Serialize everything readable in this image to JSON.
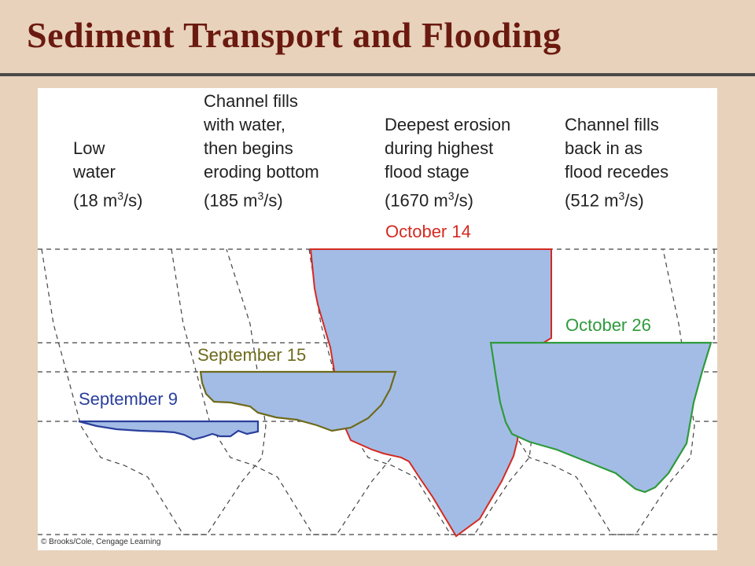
{
  "title": "Sediment Transport and Flooding",
  "stages": [
    {
      "desc": [
        "Low",
        "water"
      ],
      "rate_prefix": "(18 m",
      "rate_sup": "3",
      "rate_suffix": "/s)"
    },
    {
      "desc": [
        "Channel fills",
        "with water,",
        "then begins",
        "eroding bottom"
      ],
      "rate_prefix": "(185 m",
      "rate_sup": "3",
      "rate_suffix": "/s)"
    },
    {
      "desc": [
        "Deepest erosion",
        "during highest",
        "flood stage"
      ],
      "rate_prefix": "(1670 m",
      "rate_sup": "3",
      "rate_suffix": "/s)"
    },
    {
      "desc": [
        "Channel fills",
        "back in as",
        "flood recedes"
      ],
      "rate_prefix": "(512 m",
      "rate_sup": "3",
      "rate_suffix": "/s)"
    }
  ],
  "dates": {
    "sep9": "September 9",
    "sep15": "September 15",
    "oct14": "October 14",
    "oct26": "October 26"
  },
  "colors": {
    "sep9": "#2a3f9c",
    "sep15": "#6e6a1c",
    "oct14": "#d42a22",
    "oct26": "#2f9a3c",
    "water_fill": "#a3bce5",
    "dashed": "#444444",
    "title": "#6b1a10",
    "background": "#e8d2bb"
  },
  "credit": "© Brooks/Cole, Cengage Learning"
}
